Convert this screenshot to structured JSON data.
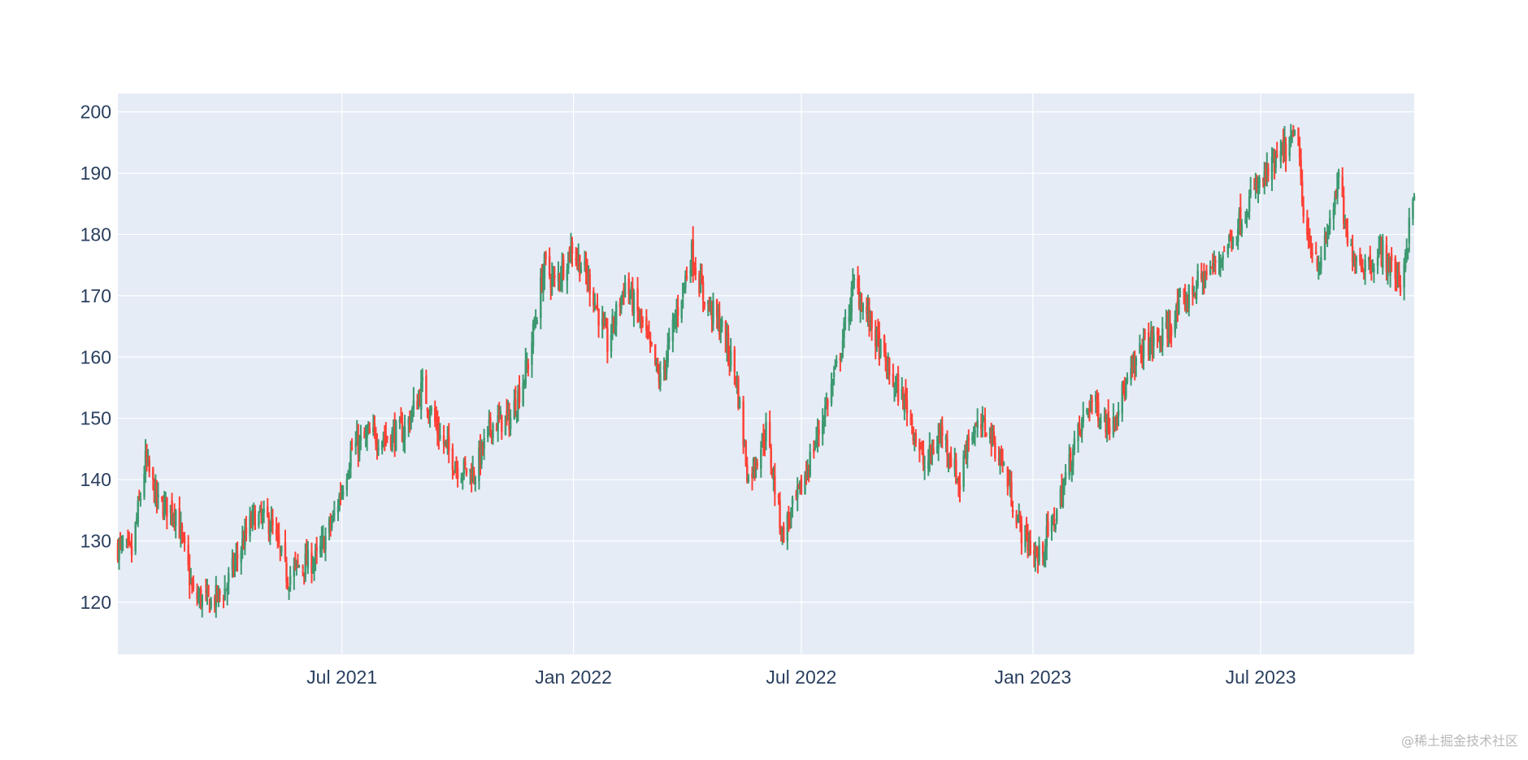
{
  "watermark": "@稀土掘金技术社区",
  "chart_data": {
    "type": "candlestick",
    "title": "",
    "xlabel": "",
    "ylabel": "",
    "grid": true,
    "legend": "none",
    "colors": {
      "background": "#e5ecf6",
      "grid": "#ffffff",
      "increasing": "#3d9970",
      "decreasing": "#ff4136",
      "text": "#2a3f5f"
    },
    "xlim": [
      "2021-01-04",
      "2023-10-31"
    ],
    "ylim": [
      111.5,
      203
    ],
    "x_ticks": [
      {
        "date": "2021-07-01",
        "label": "Jul 2021"
      },
      {
        "date": "2022-01-01",
        "label": "Jan 2022"
      },
      {
        "date": "2022-07-01",
        "label": "Jul 2022"
      },
      {
        "date": "2023-01-01",
        "label": "Jan 2023"
      },
      {
        "date": "2023-07-01",
        "label": "Jul 2023"
      }
    ],
    "y_ticks": [
      120,
      130,
      140,
      150,
      160,
      170,
      180,
      190,
      200
    ],
    "close": [
      {
        "date": "2021-01-04",
        "value": 129
      },
      {
        "date": "2021-01-15",
        "value": 128
      },
      {
        "date": "2021-01-26",
        "value": 143
      },
      {
        "date": "2021-02-05",
        "value": 136
      },
      {
        "date": "2021-02-19",
        "value": 135
      },
      {
        "date": "2021-03-05",
        "value": 121
      },
      {
        "date": "2021-03-19",
        "value": 120
      },
      {
        "date": "2021-03-30",
        "value": 122
      },
      {
        "date": "2021-04-12",
        "value": 129
      },
      {
        "date": "2021-04-22",
        "value": 134
      },
      {
        "date": "2021-05-05",
        "value": 133
      },
      {
        "date": "2021-05-19",
        "value": 124
      },
      {
        "date": "2021-05-28",
        "value": 126
      },
      {
        "date": "2021-06-11",
        "value": 127
      },
      {
        "date": "2021-06-25",
        "value": 134
      },
      {
        "date": "2021-07-09",
        "value": 145
      },
      {
        "date": "2021-07-23",
        "value": 147
      },
      {
        "date": "2021-08-06",
        "value": 147
      },
      {
        "date": "2021-08-20",
        "value": 148
      },
      {
        "date": "2021-09-03",
        "value": 155
      },
      {
        "date": "2021-09-17",
        "value": 147
      },
      {
        "date": "2021-10-01",
        "value": 142
      },
      {
        "date": "2021-10-14",
        "value": 141
      },
      {
        "date": "2021-10-28",
        "value": 149
      },
      {
        "date": "2021-11-12",
        "value": 150
      },
      {
        "date": "2021-11-26",
        "value": 159
      },
      {
        "date": "2021-12-09",
        "value": 175
      },
      {
        "date": "2021-12-17",
        "value": 172
      },
      {
        "date": "2021-12-31",
        "value": 178
      },
      {
        "date": "2022-01-14",
        "value": 172
      },
      {
        "date": "2022-01-28",
        "value": 162
      },
      {
        "date": "2022-02-11",
        "value": 172
      },
      {
        "date": "2022-02-25",
        "value": 165
      },
      {
        "date": "2022-03-11",
        "value": 156
      },
      {
        "date": "2022-03-25",
        "value": 168
      },
      {
        "date": "2022-04-05",
        "value": 177
      },
      {
        "date": "2022-04-14",
        "value": 170
      },
      {
        "date": "2022-04-28",
        "value": 165
      },
      {
        "date": "2022-05-10",
        "value": 157
      },
      {
        "date": "2022-05-20",
        "value": 140
      },
      {
        "date": "2022-06-03",
        "value": 148
      },
      {
        "date": "2022-06-16",
        "value": 131
      },
      {
        "date": "2022-06-30",
        "value": 138
      },
      {
        "date": "2022-07-15",
        "value": 148
      },
      {
        "date": "2022-07-29",
        "value": 158
      },
      {
        "date": "2022-08-12",
        "value": 172
      },
      {
        "date": "2022-08-26",
        "value": 165
      },
      {
        "date": "2022-09-09",
        "value": 157
      },
      {
        "date": "2022-09-23",
        "value": 152
      },
      {
        "date": "2022-10-07",
        "value": 142
      },
      {
        "date": "2022-10-21",
        "value": 148
      },
      {
        "date": "2022-11-04",
        "value": 139
      },
      {
        "date": "2022-11-10",
        "value": 147
      },
      {
        "date": "2022-11-25",
        "value": 149
      },
      {
        "date": "2022-12-09",
        "value": 142
      },
      {
        "date": "2022-12-22",
        "value": 132
      },
      {
        "date": "2023-01-05",
        "value": 127
      },
      {
        "date": "2023-01-19",
        "value": 134
      },
      {
        "date": "2023-02-02",
        "value": 145
      },
      {
        "date": "2023-02-16",
        "value": 153
      },
      {
        "date": "2023-03-02",
        "value": 149
      },
      {
        "date": "2023-03-16",
        "value": 155
      },
      {
        "date": "2023-03-30",
        "value": 162
      },
      {
        "date": "2023-04-14",
        "value": 163
      },
      {
        "date": "2023-04-28",
        "value": 168
      },
      {
        "date": "2023-05-12",
        "value": 172
      },
      {
        "date": "2023-05-26",
        "value": 175
      },
      {
        "date": "2023-06-09",
        "value": 180
      },
      {
        "date": "2023-06-23",
        "value": 186
      },
      {
        "date": "2023-07-07",
        "value": 190
      },
      {
        "date": "2023-07-21",
        "value": 194
      },
      {
        "date": "2023-07-31",
        "value": 196
      },
      {
        "date": "2023-08-04",
        "value": 181
      },
      {
        "date": "2023-08-18",
        "value": 175
      },
      {
        "date": "2023-09-01",
        "value": 189
      },
      {
        "date": "2023-09-08",
        "value": 178
      },
      {
        "date": "2023-09-22",
        "value": 175
      },
      {
        "date": "2023-10-06",
        "value": 177
      },
      {
        "date": "2023-10-20",
        "value": 172
      },
      {
        "date": "2023-10-31",
        "value": 186
      }
    ]
  }
}
